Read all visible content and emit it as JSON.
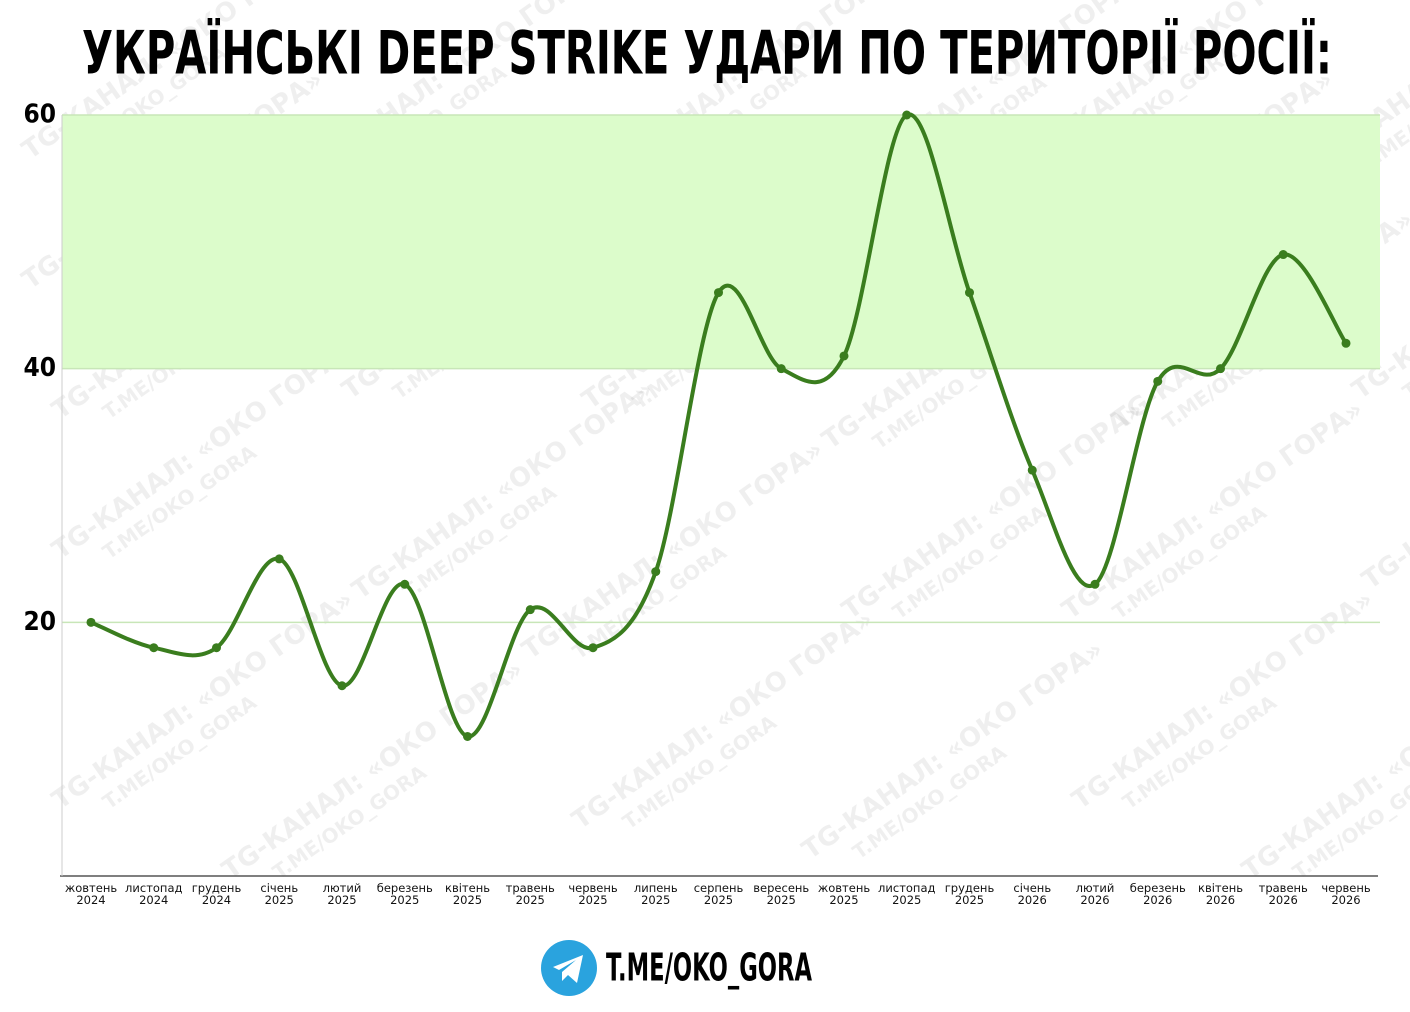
{
  "chart_data": {
    "type": "line",
    "title": "УКРАЇНСЬКІ  DEEP STRIKE УДАРИ ПО ТЕРИТОРІЇ РОСІЇ:",
    "categories": [
      [
        "жовтень",
        "2024"
      ],
      [
        "листопад",
        "2024"
      ],
      [
        "грудень",
        "2024"
      ],
      [
        "січень",
        "2025"
      ],
      [
        "лютий",
        "2025"
      ],
      [
        "березень",
        "2025"
      ],
      [
        "квітень",
        "2025"
      ],
      [
        "травень",
        "2025"
      ],
      [
        "червень",
        "2025"
      ],
      [
        "липень",
        "2025"
      ],
      [
        "серпень",
        "2025"
      ],
      [
        "вересень",
        "2025"
      ],
      [
        "жовтень",
        "2025"
      ],
      [
        "листопад",
        "2025"
      ],
      [
        "грудень",
        "2025"
      ],
      [
        "січень",
        "2026"
      ],
      [
        "лютий",
        "2026"
      ],
      [
        "березень",
        "2026"
      ],
      [
        "квітень",
        "2026"
      ],
      [
        "травень",
        "2026"
      ],
      [
        "червень",
        "2026"
      ]
    ],
    "values": [
      20,
      18,
      18,
      25,
      15,
      23,
      11,
      21,
      18,
      24,
      46,
      40,
      41,
      60,
      46,
      32,
      23,
      39,
      40,
      49,
      42
    ],
    "color": "#3a7d1e",
    "ylim": [
      0,
      60
    ],
    "yticks": [
      20,
      40,
      60
    ],
    "grid": true,
    "highlight_band": {
      "range": [
        40,
        60
      ],
      "color": "#dcfccb"
    },
    "footer": "T.ME/OKO_GORA",
    "watermark": [
      "TG-КАНАЛ: «ОКО ГОРА»",
      "T.ME/OKO_GORA"
    ]
  }
}
